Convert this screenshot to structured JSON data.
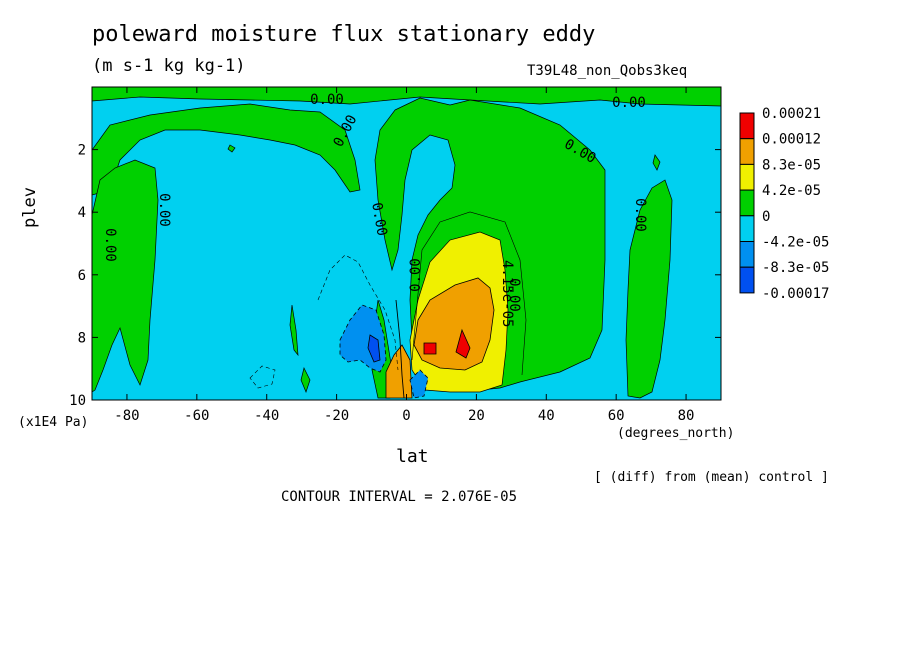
{
  "header": {
    "title": "poleward moisture flux stationary eddy",
    "units": "(m s-1 kg kg-1)",
    "run_name": "T39L48_non_Qobs3keq"
  },
  "footer": {
    "diff_note": "[ (diff) from (mean) control ]",
    "contour_interval": "CONTOUR INTERVAL = 2.076E-05"
  },
  "chart_data": {
    "type": "heatmap",
    "title": "poleward moisture flux stationary eddy",
    "subtitle": "(m s-1 kg kg-1)",
    "xlabel": "lat",
    "x_units": "(degrees_north)",
    "ylabel": "plev",
    "y_units": "(x1E4 Pa)",
    "xlim": [
      -90,
      90
    ],
    "ylim": [
      10,
      0
    ],
    "x_ticks": [
      -80,
      -60,
      -40,
      -20,
      0,
      20,
      40,
      60,
      80
    ],
    "x_tick_labels": [
      "-80",
      "-60",
      "-40",
      "-20",
      "0",
      "20",
      "40",
      "60",
      "80"
    ],
    "y_ticks": [
      2,
      4,
      6,
      8,
      10
    ],
    "y_tick_labels": [
      "2",
      "4",
      "6",
      "8",
      "10"
    ],
    "colorbar": {
      "levels": [
        "0.00021",
        "0.00012",
        "8.3e-05",
        "4.2e-05",
        "0",
        "-4.2e-05",
        "-8.3e-05",
        "-0.00017"
      ],
      "colors": [
        "#f00000",
        "#f0a000",
        "#f0f000",
        "#00d000",
        "#00d0f0",
        "#0090f0",
        "#0050f0"
      ]
    },
    "contour_labels": [
      "0.00",
      "0.00",
      "0.00",
      "0.00",
      "0.00",
      "0.00",
      "0.00",
      "0.00",
      "0.00",
      "0.00",
      "4.15e-05"
    ],
    "fields": {
      "background": "#00d0f0",
      "green_regions": [
        {
          "name": "top-band",
          "lat": [
            -90,
            90
          ],
          "plev": [
            0,
            0.9
          ]
        },
        {
          "name": "upper-mid-sh",
          "lat": [
            -75,
            -10
          ],
          "plev": [
            0.5,
            2.5
          ]
        },
        {
          "name": "nh-broad",
          "lat": [
            10,
            57
          ],
          "plev": [
            0.5,
            10
          ]
        },
        {
          "name": "sh-column",
          "lat": [
            -90,
            -70
          ],
          "plev": [
            0.5,
            9.5
          ]
        }
      ],
      "max_positive": {
        "lat": 15,
        "plev": 8.3,
        "value": 0.00021
      },
      "min_negative": {
        "lat": -8,
        "plev": 8.5,
        "value": -0.00017
      }
    }
  }
}
